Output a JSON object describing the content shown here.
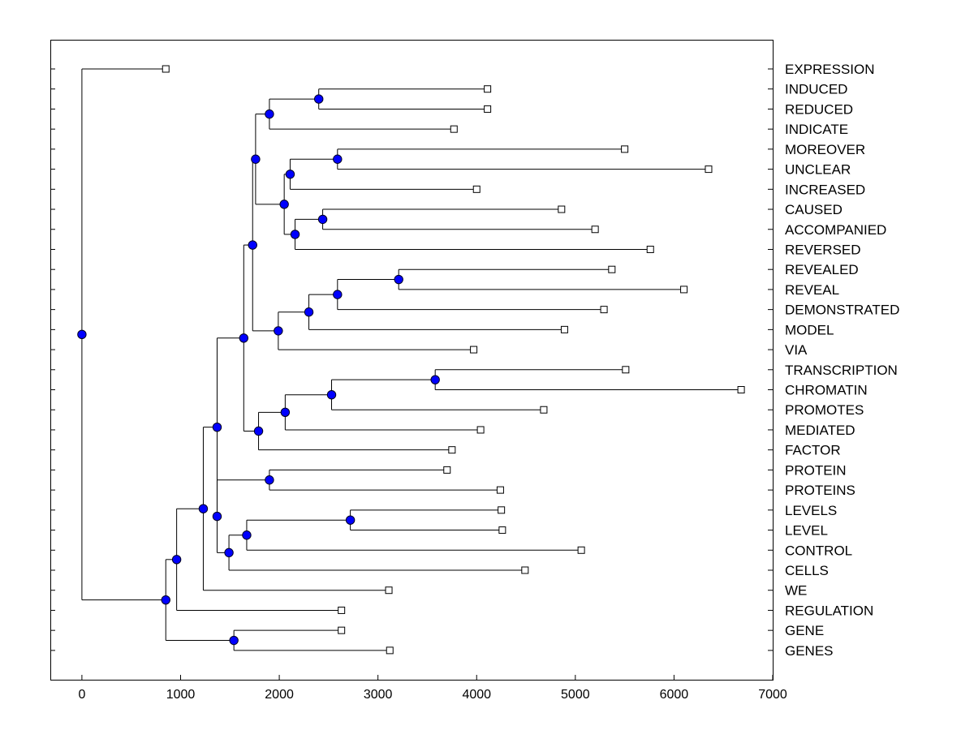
{
  "chart_data": {
    "type": "dendrogram",
    "title": "",
    "xlabel": "",
    "ylabel": "",
    "xlim": [
      -320,
      7000
    ],
    "x_ticks": [
      0,
      1000,
      2000,
      3000,
      4000,
      5000,
      6000,
      7000
    ],
    "x_tick_labels": [
      "0",
      "1000",
      "2000",
      "3000",
      "4000",
      "5000",
      "6000",
      "7000"
    ],
    "colors": {
      "node": "#0000ff",
      "line": "#000000",
      "leaf_fill": "#ffffff"
    },
    "leaves": [
      {
        "label": "EXPRESSION",
        "value": 850
      },
      {
        "label": "INDUCED",
        "value": 4110
      },
      {
        "label": "REDUCED",
        "value": 4110
      },
      {
        "label": "INDICATE",
        "value": 3770
      },
      {
        "label": "MOREOVER",
        "value": 5500
      },
      {
        "label": "UNCLEAR",
        "value": 6350
      },
      {
        "label": "INCREASED",
        "value": 4000
      },
      {
        "label": "CAUSED",
        "value": 4860
      },
      {
        "label": "ACCOMPANIED",
        "value": 5200
      },
      {
        "label": "REVERSED",
        "value": 5760
      },
      {
        "label": "REVEALED",
        "value": 5370
      },
      {
        "label": "REVEAL",
        "value": 6100
      },
      {
        "label": "DEMONSTRATED",
        "value": 5290
      },
      {
        "label": "MODEL",
        "value": 4890
      },
      {
        "label": "VIA",
        "value": 3970
      },
      {
        "label": "TRANSCRIPTION",
        "value": 5510
      },
      {
        "label": "CHROMATIN",
        "value": 6680
      },
      {
        "label": "PROMOTES",
        "value": 4680
      },
      {
        "label": "MEDIATED",
        "value": 4040
      },
      {
        "label": "FACTOR",
        "value": 3750
      },
      {
        "label": "PROTEIN",
        "value": 3700
      },
      {
        "label": "PROTEINS",
        "value": 4240
      },
      {
        "label": "LEVELS",
        "value": 4250
      },
      {
        "label": "LEVEL",
        "value": 4260
      },
      {
        "label": "CONTROL",
        "value": 5060
      },
      {
        "label": "CELLS",
        "value": 4490
      },
      {
        "label": "WE",
        "value": 3110
      },
      {
        "label": "REGULATION",
        "value": 2630
      },
      {
        "label": "GENE",
        "value": 2630
      },
      {
        "label": "GENES",
        "value": 3120
      }
    ],
    "merges": [
      {
        "id": "n1",
        "value": 2400,
        "children": [
          "INDUCED",
          "REDUCED"
        ]
      },
      {
        "id": "n2",
        "value": 1900,
        "children": [
          "n1",
          "INDICATE"
        ]
      },
      {
        "id": "n3",
        "value": 2590,
        "children": [
          "MOREOVER",
          "UNCLEAR"
        ]
      },
      {
        "id": "n4",
        "value": 2110,
        "children": [
          "n3",
          "INCREASED"
        ]
      },
      {
        "id": "n5",
        "value": 2440,
        "children": [
          "CAUSED",
          "ACCOMPANIED"
        ]
      },
      {
        "id": "n6",
        "value": 2160,
        "children": [
          "n5",
          "REVERSED"
        ]
      },
      {
        "id": "n7",
        "value": 2050,
        "children": [
          "n4",
          "n6"
        ]
      },
      {
        "id": "n8",
        "value": 1760,
        "children": [
          "n2",
          "n7"
        ]
      },
      {
        "id": "n9",
        "value": 3210,
        "children": [
          "REVEALED",
          "REVEAL"
        ]
      },
      {
        "id": "n10",
        "value": 2590,
        "children": [
          "n9",
          "DEMONSTRATED"
        ]
      },
      {
        "id": "n11",
        "value": 2300,
        "children": [
          "n10",
          "MODEL"
        ]
      },
      {
        "id": "n12",
        "value": 1990,
        "children": [
          "n11",
          "VIA"
        ]
      },
      {
        "id": "n13",
        "value": 1730,
        "children": [
          "n8",
          "n12"
        ]
      },
      {
        "id": "n14",
        "value": 3580,
        "children": [
          "TRANSCRIPTION",
          "CHROMATIN"
        ]
      },
      {
        "id": "n15",
        "value": 2530,
        "children": [
          "n14",
          "PROMOTES"
        ]
      },
      {
        "id": "n16",
        "value": 2060,
        "children": [
          "n15",
          "MEDIATED"
        ]
      },
      {
        "id": "n17",
        "value": 1790,
        "children": [
          "n16",
          "FACTOR"
        ]
      },
      {
        "id": "n18",
        "value": 1640,
        "children": [
          "n13",
          "n17"
        ]
      },
      {
        "id": "n19",
        "value": 1900,
        "children": [
          "PROTEIN",
          "PROTEINS"
        ]
      },
      {
        "id": "n20",
        "value": 2720,
        "children": [
          "LEVELS",
          "LEVEL"
        ]
      },
      {
        "id": "n21",
        "value": 1670,
        "children": [
          "n20",
          "CONTROL"
        ]
      },
      {
        "id": "n22",
        "value": 1490,
        "children": [
          "n21",
          "CELLS"
        ]
      },
      {
        "id": "n23",
        "value": 1370,
        "children": [
          "n19",
          "n22"
        ]
      },
      {
        "id": "n24",
        "value": 1370,
        "children": [
          "n18",
          "n23"
        ]
      },
      {
        "id": "n25",
        "value": 1230,
        "children": [
          "n24",
          "WE"
        ]
      },
      {
        "id": "n26",
        "value": 960,
        "children": [
          "n25",
          "REGULATION"
        ]
      },
      {
        "id": "n27",
        "value": 1540,
        "children": [
          "GENE",
          "GENES"
        ]
      },
      {
        "id": "n28",
        "value": 850,
        "children": [
          "n26",
          "n27"
        ]
      },
      {
        "id": "n29",
        "value": 0,
        "children": [
          "EXPRESSION",
          "n28"
        ]
      }
    ]
  }
}
